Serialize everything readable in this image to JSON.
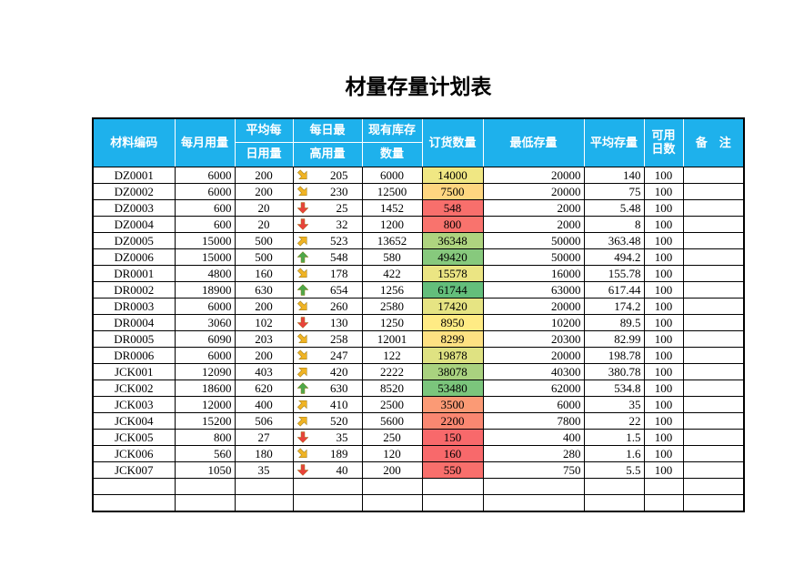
{
  "title": "材量存量计划表",
  "table": {
    "header": [
      "材料编码",
      "每月用量",
      [
        "平均每",
        "日用量"
      ],
      [
        "每日最",
        "高用量"
      ],
      [
        "现有库存",
        "数量"
      ],
      "订货数量",
      "最低存量",
      "平均存量",
      [
        "可用",
        "日数"
      ],
      "备　注"
    ],
    "rows": [
      [
        "DZ0001",
        6000,
        200,
        205,
        6000,
        14000,
        20000,
        140,
        100
      ],
      [
        "DZ0002",
        6000,
        200,
        230,
        12500,
        7500,
        20000,
        75,
        100
      ],
      [
        "DZ0003",
        600,
        20,
        25,
        1452,
        548,
        2000,
        5.48,
        100
      ],
      [
        "DZ0004",
        600,
        20,
        32,
        1200,
        800,
        2000,
        8,
        100
      ],
      [
        "DZ0005",
        15000,
        500,
        523,
        13652,
        36348,
        50000,
        363.48,
        100
      ],
      [
        "DZ0006",
        15000,
        500,
        548,
        580,
        49420,
        50000,
        494.2,
        100
      ],
      [
        "DR0001",
        4800,
        160,
        178,
        422,
        15578,
        16000,
        155.78,
        100
      ],
      [
        "DR0002",
        18900,
        630,
        654,
        1256,
        61744,
        63000,
        617.44,
        100
      ],
      [
        "DR0003",
        6000,
        200,
        260,
        2580,
        17420,
        20000,
        174.2,
        100
      ],
      [
        "DR0004",
        3060,
        102,
        130,
        1250,
        8950,
        10200,
        89.5,
        100
      ],
      [
        "DR0005",
        6090,
        203,
        258,
        12001,
        8299,
        20300,
        82.99,
        100
      ],
      [
        "DR0006",
        6000,
        200,
        247,
        122,
        19878,
        20000,
        198.78,
        100
      ],
      [
        "JCK001",
        12090,
        403,
        420,
        2222,
        38078,
        40300,
        380.78,
        100
      ],
      [
        "JCK002",
        18600,
        620,
        630,
        8520,
        53480,
        62000,
        534.8,
        100
      ],
      [
        "JCK003",
        12000,
        400,
        410,
        2500,
        3500,
        6000,
        35,
        100
      ],
      [
        "JCK004",
        15200,
        506,
        520,
        5600,
        2200,
        7800,
        22,
        100
      ],
      [
        "JCK005",
        800,
        27,
        35,
        250,
        150,
        400,
        1.5,
        100
      ],
      [
        "JCK006",
        560,
        180,
        189,
        120,
        160,
        280,
        1.6,
        100
      ],
      [
        "JCK007",
        1050,
        35,
        40,
        200,
        550,
        750,
        5.5,
        100
      ]
    ]
  }
}
